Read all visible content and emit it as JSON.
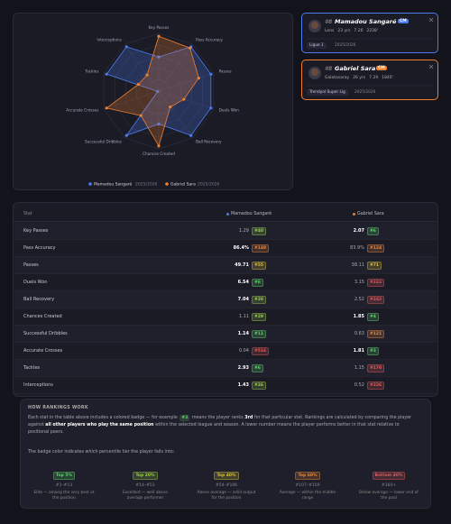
{
  "players": [
    {
      "number": "#8",
      "name": "Mamadou Sangaré",
      "position": "CM",
      "club": "Lens",
      "age": "23 yrs",
      "rating": "7.26",
      "minutes": "2238'",
      "league": "Ligue 1",
      "season": "2025/2026",
      "color": "#4a7cf0"
    },
    {
      "number": "#8",
      "name": "Gabriel Sara",
      "position": "CM",
      "club": "Galatasaray",
      "age": "26 yrs",
      "rating": "7.29",
      "minutes": "1840'",
      "league": "Trendyol Super Lig",
      "season": "2025/2026",
      "color": "#f07f2e"
    }
  ],
  "table": {
    "stat_header": "Stat",
    "rows": [
      {
        "stat": "Key Passes",
        "cells": [
          {
            "value": 1.29,
            "rank": {
              "value": 40,
              "label": "#40"
            }
          },
          {
            "value": 2.07,
            "rank": {
              "value": 6,
              "label": "#6"
            }
          }
        ]
      },
      {
        "stat": "Pass Accuracy",
        "cells": [
          {
            "value": 86.4,
            "value_label": "86.4%",
            "rank": {
              "value": 149,
              "label": "#149"
            }
          },
          {
            "value": 83.9,
            "value_label": "83.9%",
            "rank": {
              "value": 124,
              "label": "#124"
            }
          }
        ]
      },
      {
        "stat": "Passes",
        "cells": [
          {
            "value": 49.71,
            "rank": {
              "value": 55,
              "label": "#55"
            }
          },
          {
            "value": 38.11,
            "rank": {
              "value": 71,
              "label": "#71"
            }
          }
        ]
      },
      {
        "stat": "Duels Won",
        "cells": [
          {
            "value": 6.54,
            "rank": {
              "value": 6,
              "label": "#6"
            }
          },
          {
            "value": 3.15,
            "rank": {
              "value": 222,
              "label": "#222"
            }
          }
        ]
      },
      {
        "stat": "Ball Recovery",
        "cells": [
          {
            "value": 7.04,
            "rank": {
              "value": 20,
              "label": "#20"
            }
          },
          {
            "value": 2.52,
            "rank": {
              "value": 242,
              "label": "#242"
            }
          }
        ]
      },
      {
        "stat": "Chances Created",
        "cells": [
          {
            "value": 1.11,
            "rank": {
              "value": 29,
              "label": "#29"
            }
          },
          {
            "value": 1.85,
            "rank": {
              "value": 4,
              "label": "#4"
            }
          }
        ]
      },
      {
        "stat": "Successful Dribbles",
        "cells": [
          {
            "value": 1.14,
            "rank": {
              "value": 11,
              "label": "#11"
            }
          },
          {
            "value": 0.63,
            "rank": {
              "value": 121,
              "label": "#121"
            }
          }
        ]
      },
      {
        "stat": "Accurate Crosses",
        "cells": [
          {
            "value": 0.04,
            "rank": {
              "value": 516,
              "label": "#516"
            }
          },
          {
            "value": 1.81,
            "rank": {
              "value": 3,
              "label": "#3"
            }
          }
        ]
      },
      {
        "stat": "Tackles",
        "cells": [
          {
            "value": 2.93,
            "rank": {
              "value": 6,
              "label": "#6"
            }
          },
          {
            "value": 1.15,
            "rank": {
              "value": 170,
              "label": "#170"
            }
          }
        ]
      },
      {
        "stat": "Interceptions",
        "cells": [
          {
            "value": 1.43,
            "rank": {
              "value": 26,
              "label": "#26"
            }
          },
          {
            "value": 0.52,
            "rank": {
              "value": 226,
              "label": "#226"
            }
          }
        ]
      }
    ]
  },
  "rankings": {
    "title": "HOW RANKINGS WORK",
    "paragraph": [
      "Each stat in the table above includes a colored badge — for example",
      "#3",
      "means the player ranks",
      "3rd",
      "for that particular stat. Rankings are calculated by comparing the player against",
      "all other players who play the same position",
      "within the selected league and season. A lower number means the player performs better in that stat relative to positional peers."
    ],
    "tier_intro": "The badge color indicates which percentile tier the player falls into:",
    "tiers": [
      {
        "label": "Top 5%",
        "range": "#1–#13",
        "max": 13,
        "desc": "Elite — among the very best at the position",
        "color": "#5fd36a"
      },
      {
        "label": "Top 20%",
        "range": "#14–#53",
        "max": 53,
        "desc": "Excellent — well above average performer",
        "color": "#9ccf4a"
      },
      {
        "label": "Top 40%",
        "range": "#54–#106",
        "max": 106,
        "desc": "Above average — solid output for the position",
        "color": "#d8c23e"
      },
      {
        "label": "Top 60%",
        "range": "#107–#159",
        "max": 159,
        "desc": "Average — within the middle range",
        "color": "#e8883a"
      },
      {
        "label": "Bottom 40%",
        "range": "#160+",
        "desc": "Below average — lower end of the pool",
        "color": "#e05a5a"
      }
    ]
  }
}
